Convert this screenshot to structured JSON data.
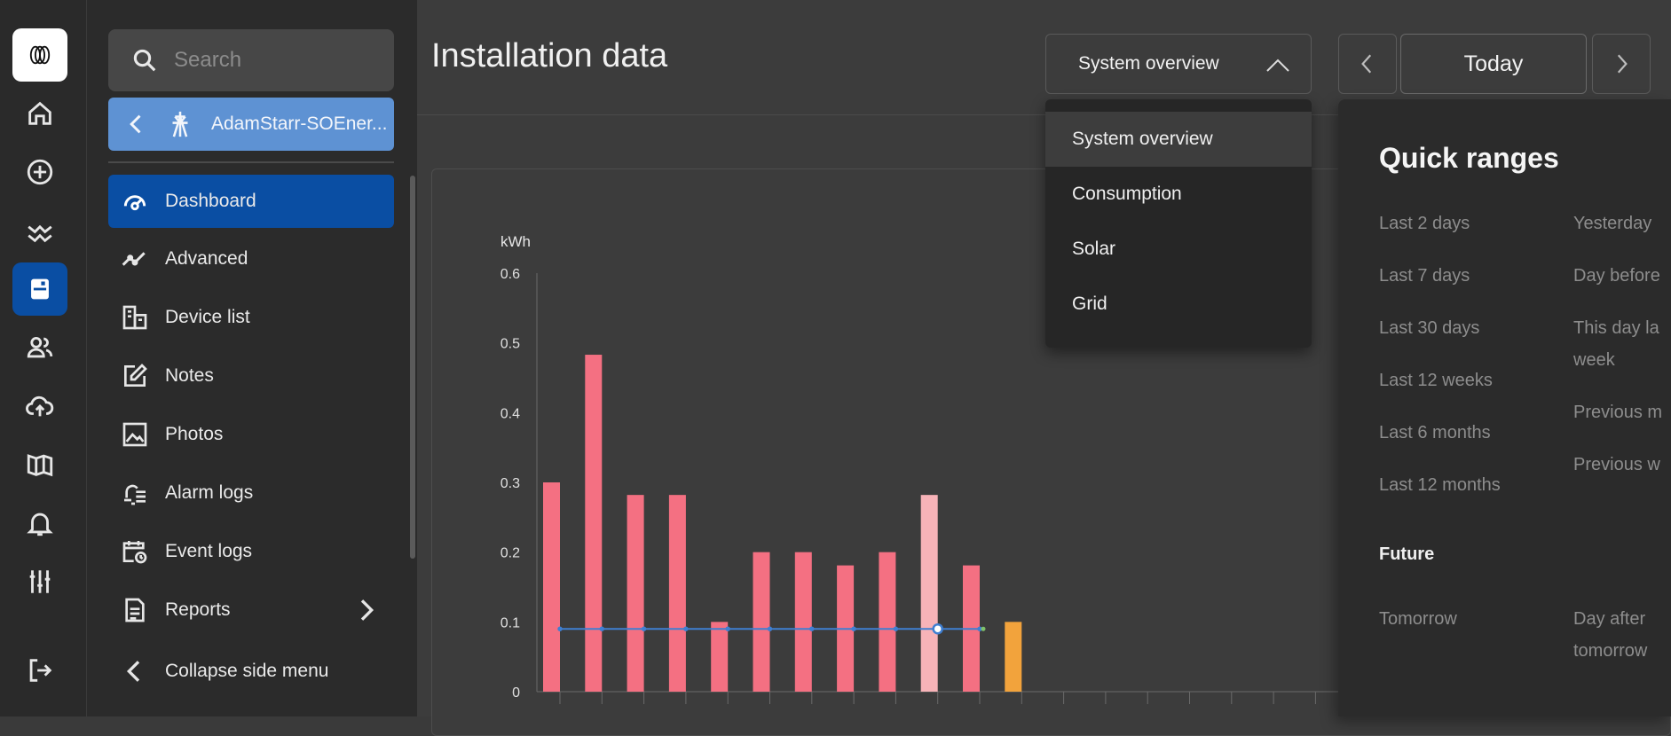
{
  "rail": {
    "items": [
      {
        "icon": "home-icon"
      },
      {
        "icon": "add-circle-icon"
      },
      {
        "icon": "trend-icon"
      },
      {
        "icon": "installations-icon"
      },
      {
        "icon": "users-icon"
      },
      {
        "icon": "cloud-upload-icon"
      },
      {
        "icon": "book-icon"
      },
      {
        "icon": "bell-icon"
      },
      {
        "icon": "sliders-icon"
      },
      {
        "icon": "logout-icon"
      }
    ],
    "active_index": 3
  },
  "sidebar": {
    "search_placeholder": "Search",
    "site_name": "AdamStarr-SOEner...",
    "items": [
      {
        "label": "Dashboard",
        "icon": "dashboard-icon",
        "active": true
      },
      {
        "label": "Advanced",
        "icon": "advanced-graph-icon"
      },
      {
        "label": "Device list",
        "icon": "device-list-icon"
      },
      {
        "label": "Notes",
        "icon": "notes-icon"
      },
      {
        "label": "Photos",
        "icon": "photos-icon"
      },
      {
        "label": "Alarm logs",
        "icon": "alarm-logs-icon"
      },
      {
        "label": "Event logs",
        "icon": "event-logs-icon"
      },
      {
        "label": "Reports",
        "icon": "reports-icon"
      }
    ],
    "collapse_label": "Collapse side menu"
  },
  "header": {
    "title": "Installation data",
    "select_value": "System overview",
    "today_label": "Today"
  },
  "dropdown": {
    "options": [
      "System overview",
      "Consumption",
      "Solar",
      "Grid"
    ],
    "selected_index": 0
  },
  "quick_ranges": {
    "title": "Quick ranges",
    "left": [
      "Last 2 days",
      "Last 7 days",
      "Last 30 days",
      "Last 12 weeks",
      "Last 6 months",
      "Last 12 months"
    ],
    "right": [
      "Yesterday",
      "Day before",
      "This day la",
      "week",
      "Previous m",
      "Previous w"
    ],
    "future_title": "Future",
    "future_left": [
      "Tomorrow"
    ],
    "future_right": [
      "Day after",
      "tomorrow"
    ]
  },
  "chart_data": {
    "type": "bar",
    "ylabel": "kWh",
    "ylim": [
      0,
      0.6
    ],
    "yticks": [
      "0",
      "0.1",
      "0.2",
      "0.3",
      "0.4",
      "0.5",
      "0.6"
    ],
    "values": [
      0.3,
      0.483,
      0.282,
      0.282,
      0.1,
      0.2,
      0.2,
      0.181,
      0.2,
      0.282,
      0.181,
      0.1
    ],
    "bar_colors": [
      "#f47082",
      "#f47082",
      "#f47082",
      "#f47082",
      "#f47082",
      "#f47082",
      "#f47082",
      "#f47082",
      "#f47082",
      "#f7b3b8",
      "#f47082",
      "#f2a33c"
    ],
    "line_series": {
      "values": [
        0.09,
        0.09,
        0.09,
        0.09,
        0.09,
        0.09,
        0.09,
        0.09,
        0.09,
        0.09,
        0.09
      ],
      "color": "#3f7fd1"
    },
    "grid": false,
    "slots": 19
  }
}
